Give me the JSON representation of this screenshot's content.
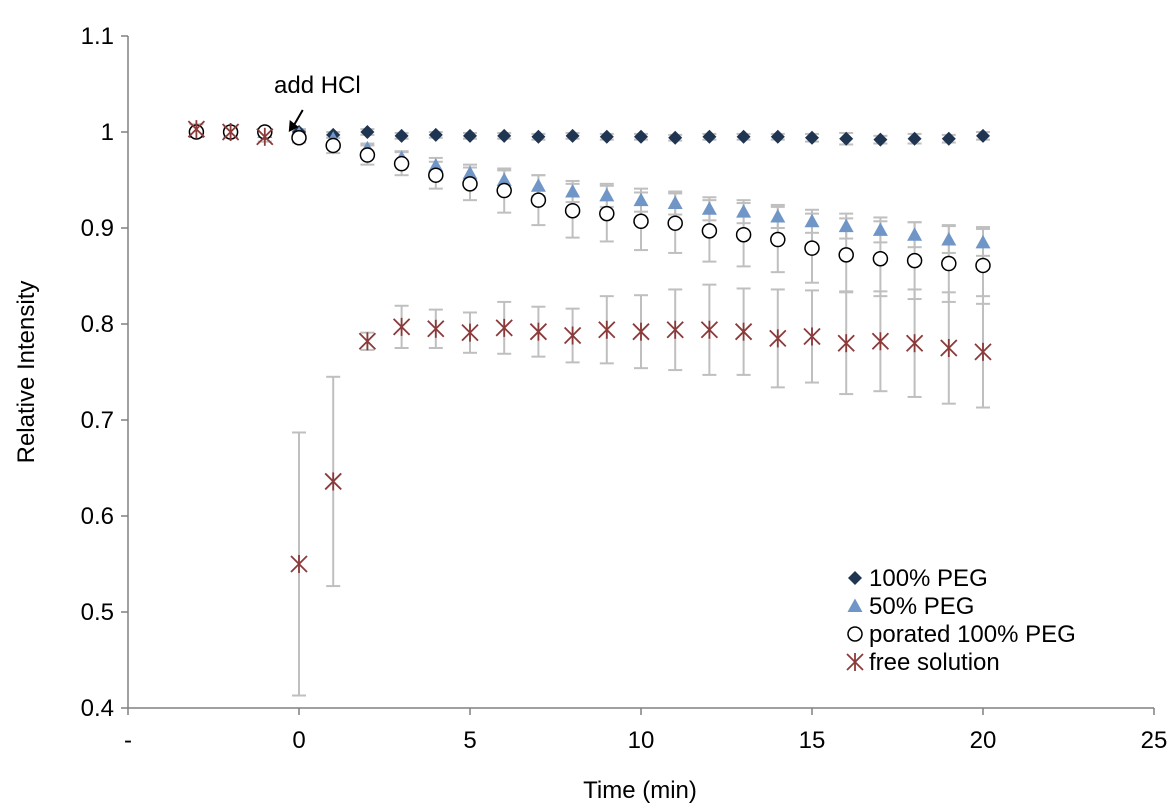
{
  "chart_data": {
    "type": "scatter",
    "title": "",
    "xlabel": "Time (min)",
    "ylabel": "Relative Intensity",
    "xlim": [
      -5,
      25
    ],
    "ylim": [
      0.4,
      1.1
    ],
    "xticks": [
      -5,
      0,
      5,
      10,
      15,
      20,
      25
    ],
    "xtick_labels": [
      "-",
      "0",
      "5",
      "10",
      "15",
      "20",
      "25"
    ],
    "yticks": [
      0.4,
      0.5,
      0.6,
      0.7,
      0.8,
      0.9,
      1.0,
      1.1
    ],
    "ytick_labels": [
      "0.4",
      "0.5",
      "0.6",
      "0.7",
      "0.8",
      "0.9",
      "1",
      "1.1"
    ],
    "grid": false,
    "legend_position": "bottom-right",
    "annotation": {
      "text": "add HCl",
      "x": -0.3,
      "y": 1.0
    },
    "errorbar_color": "#bfbfbf",
    "series": [
      {
        "name": "100% PEG",
        "marker": "diamond",
        "color": "#1f3552",
        "x": [
          -3,
          -2,
          -1,
          0,
          1,
          2,
          3,
          4,
          5,
          6,
          7,
          8,
          9,
          10,
          11,
          12,
          13,
          14,
          15,
          16,
          17,
          18,
          19,
          20
        ],
        "y": [
          1.0,
          1.0,
          1.0,
          1.0,
          0.997,
          1.0,
          0.996,
          0.997,
          0.996,
          0.996,
          0.995,
          0.996,
          0.995,
          0.995,
          0.994,
          0.995,
          0.995,
          0.995,
          0.994,
          0.993,
          0.992,
          0.993,
          0.993,
          0.996
        ],
        "err": [
          0.003,
          0.003,
          0.003,
          0.003,
          0.003,
          0.003,
          0.003,
          0.003,
          0.003,
          0.003,
          0.003,
          0.003,
          0.003,
          0.003,
          0.003,
          0.003,
          0.003,
          0.003,
          0.004,
          0.006,
          0.004,
          0.005,
          0.004,
          0.004
        ]
      },
      {
        "name": "50% PEG",
        "marker": "triangle",
        "color": "#7096c8",
        "x": [
          -3,
          -2,
          -1,
          0,
          1,
          2,
          3,
          4,
          5,
          6,
          7,
          8,
          9,
          10,
          11,
          12,
          13,
          14,
          15,
          16,
          17,
          18,
          19,
          20
        ],
        "y": [
          1.0,
          1.0,
          1.0,
          0.998,
          0.993,
          0.983,
          0.973,
          0.965,
          0.957,
          0.95,
          0.944,
          0.938,
          0.934,
          0.929,
          0.926,
          0.92,
          0.917,
          0.912,
          0.907,
          0.902,
          0.898,
          0.893,
          0.888,
          0.885
        ],
        "err": [
          0.002,
          0.002,
          0.002,
          0.003,
          0.004,
          0.005,
          0.007,
          0.008,
          0.009,
          0.01,
          0.011,
          0.011,
          0.012,
          0.012,
          0.012,
          0.012,
          0.012,
          0.012,
          0.012,
          0.013,
          0.013,
          0.013,
          0.014,
          0.014
        ]
      },
      {
        "name": "porated 100% PEG",
        "marker": "circle-open",
        "color": "#000000",
        "x": [
          -3,
          -2,
          -1,
          0,
          1,
          2,
          3,
          4,
          5,
          6,
          7,
          8,
          9,
          10,
          11,
          12,
          13,
          14,
          15,
          16,
          17,
          18,
          19,
          20
        ],
        "y": [
          1.0,
          1.0,
          1.0,
          0.994,
          0.986,
          0.976,
          0.967,
          0.955,
          0.946,
          0.939,
          0.929,
          0.918,
          0.915,
          0.907,
          0.905,
          0.897,
          0.893,
          0.888,
          0.879,
          0.872,
          0.868,
          0.866,
          0.863,
          0.861
        ],
        "err": [
          0.003,
          0.003,
          0.003,
          0.005,
          0.008,
          0.01,
          0.012,
          0.014,
          0.017,
          0.023,
          0.026,
          0.028,
          0.029,
          0.03,
          0.031,
          0.032,
          0.033,
          0.034,
          0.036,
          0.038,
          0.039,
          0.04,
          0.04,
          0.04
        ]
      },
      {
        "name": "free solution",
        "marker": "asterisk",
        "color": "#8b3a3a",
        "x": [
          -3,
          -2,
          -1,
          0,
          1,
          2,
          3,
          4,
          5,
          6,
          7,
          8,
          9,
          10,
          11,
          12,
          13,
          14,
          15,
          16,
          17,
          18,
          19,
          20
        ],
        "y": [
          1.003,
          1.0,
          0.995,
          0.55,
          0.636,
          0.782,
          0.797,
          0.795,
          0.791,
          0.796,
          0.792,
          0.788,
          0.794,
          0.792,
          0.794,
          0.794,
          0.792,
          0.785,
          0.787,
          0.78,
          0.782,
          0.78,
          0.775,
          0.771
        ],
        "err": [
          0.005,
          0.005,
          0.005,
          0.137,
          0.109,
          0.009,
          0.022,
          0.02,
          0.021,
          0.027,
          0.026,
          0.028,
          0.035,
          0.038,
          0.042,
          0.047,
          0.045,
          0.051,
          0.048,
          0.053,
          0.052,
          0.056,
          0.058,
          0.058
        ]
      }
    ]
  }
}
